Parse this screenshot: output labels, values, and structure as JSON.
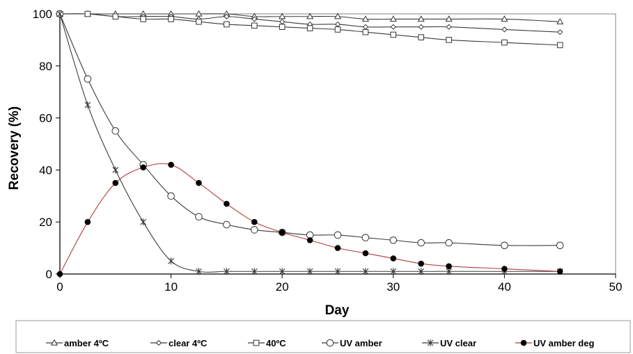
{
  "chart_data": {
    "type": "line",
    "xlabel": "Day",
    "ylabel": "Recovery (%)",
    "xlim": [
      0,
      50
    ],
    "ylim": [
      0,
      100
    ],
    "xticks": [
      0,
      10,
      20,
      30,
      40,
      50
    ],
    "yticks": [
      0,
      20,
      40,
      60,
      80,
      100
    ],
    "grid": false,
    "legend_position": "bottom",
    "series": [
      {
        "name": "amber 4ºC",
        "marker": "triangle",
        "color": "#3a3a3a",
        "points": [
          [
            0,
            100
          ],
          [
            2.5,
            100
          ],
          [
            5,
            100
          ],
          [
            7.5,
            100
          ],
          [
            10,
            100
          ],
          [
            12.5,
            100
          ],
          [
            15,
            100
          ],
          [
            17.5,
            99
          ],
          [
            20,
            99
          ],
          [
            22.5,
            99
          ],
          [
            25,
            99
          ],
          [
            27.5,
            98
          ],
          [
            30,
            98
          ],
          [
            32.5,
            98
          ],
          [
            35,
            98
          ],
          [
            40,
            98
          ],
          [
            45,
            97
          ]
        ]
      },
      {
        "name": "clear 4ºC",
        "marker": "diamond",
        "color": "#3a3a3a",
        "points": [
          [
            0,
            100
          ],
          [
            2.5,
            100
          ],
          [
            5,
            99
          ],
          [
            7.5,
            99
          ],
          [
            10,
            99
          ],
          [
            12.5,
            98
          ],
          [
            15,
            99
          ],
          [
            17.5,
            98
          ],
          [
            20,
            97
          ],
          [
            22.5,
            96
          ],
          [
            25,
            96
          ],
          [
            27.5,
            95
          ],
          [
            30,
            95
          ],
          [
            32.5,
            95
          ],
          [
            35,
            95
          ],
          [
            40,
            94
          ],
          [
            45,
            93
          ]
        ]
      },
      {
        "name": "40ºC",
        "marker": "square",
        "color": "#3a3a3a",
        "points": [
          [
            0,
            100
          ],
          [
            2.5,
            100
          ],
          [
            5,
            99
          ],
          [
            7.5,
            98
          ],
          [
            10,
            98
          ],
          [
            12.5,
            97
          ],
          [
            15,
            96
          ],
          [
            17.5,
            95.5
          ],
          [
            20,
            95
          ],
          [
            22.5,
            94.5
          ],
          [
            25,
            94
          ],
          [
            27.5,
            93
          ],
          [
            30,
            92
          ],
          [
            32.5,
            91
          ],
          [
            35,
            90
          ],
          [
            40,
            89
          ],
          [
            45,
            88
          ]
        ]
      },
      {
        "name": "UV amber",
        "marker": "circle",
        "color": "#3a3a3a",
        "points": [
          [
            0,
            100
          ],
          [
            2.5,
            75
          ],
          [
            5,
            55
          ],
          [
            7.5,
            42
          ],
          [
            10,
            30
          ],
          [
            12.5,
            22
          ],
          [
            15,
            19
          ],
          [
            17.5,
            17
          ],
          [
            20,
            16
          ],
          [
            22.5,
            15
          ],
          [
            25,
            15
          ],
          [
            27.5,
            14
          ],
          [
            30,
            13
          ],
          [
            32.5,
            12
          ],
          [
            35,
            12
          ],
          [
            40,
            11
          ],
          [
            45,
            11
          ]
        ]
      },
      {
        "name": "UV clear",
        "marker": "star",
        "color": "#3a3a3a",
        "points": [
          [
            0,
            100
          ],
          [
            2.5,
            65
          ],
          [
            5,
            40
          ],
          [
            7.5,
            20
          ],
          [
            10,
            5
          ],
          [
            12.5,
            1
          ],
          [
            15,
            1
          ],
          [
            17.5,
            1
          ],
          [
            20,
            1
          ],
          [
            22.5,
            1
          ],
          [
            25,
            1
          ],
          [
            27.5,
            1
          ],
          [
            30,
            1
          ],
          [
            32.5,
            1
          ],
          [
            35,
            1
          ],
          [
            40,
            1
          ],
          [
            45,
            1
          ]
        ]
      },
      {
        "name": "UV amber deg",
        "marker": "filled-circle",
        "color": "#b03a3a",
        "points": [
          [
            0,
            0
          ],
          [
            2.5,
            20
          ],
          [
            5,
            35
          ],
          [
            7.5,
            41
          ],
          [
            10,
            42
          ],
          [
            12.5,
            35
          ],
          [
            15,
            27
          ],
          [
            17.5,
            20
          ],
          [
            20,
            16
          ],
          [
            22.5,
            13
          ],
          [
            25,
            10
          ],
          [
            27.5,
            8
          ],
          [
            30,
            6
          ],
          [
            32.5,
            4
          ],
          [
            35,
            3
          ],
          [
            40,
            2
          ],
          [
            45,
            1
          ]
        ]
      }
    ]
  }
}
